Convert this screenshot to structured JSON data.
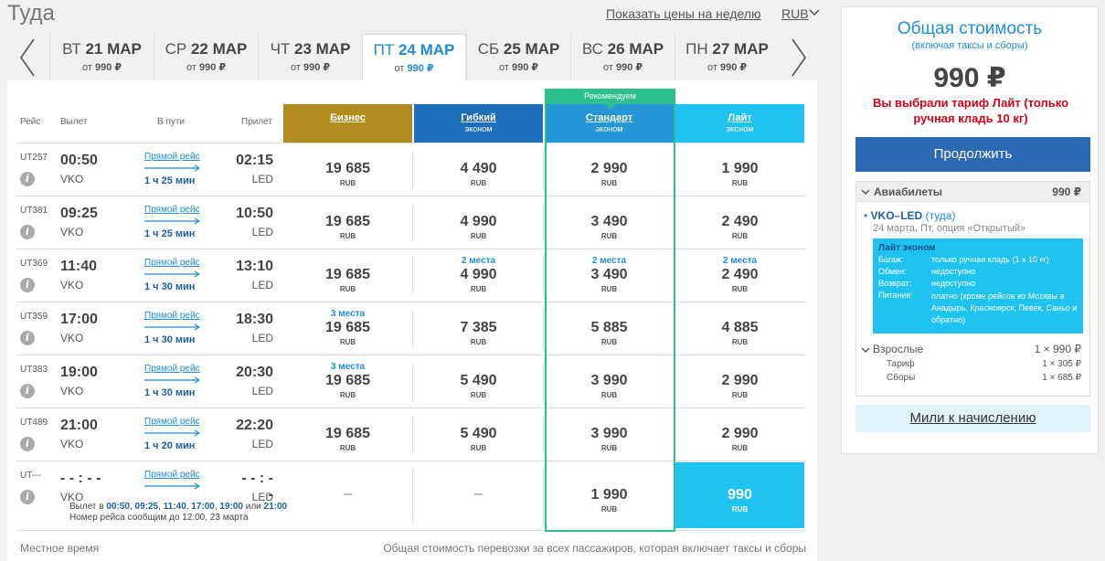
{
  "header": {
    "title": "Туда",
    "week_link": "Показать цены на неделю",
    "currency": "RUB"
  },
  "dates": [
    {
      "dow": "ВТ",
      "day": "21 МАР",
      "price_prefix": "от",
      "price": "990 ₽",
      "active": false
    },
    {
      "dow": "СР",
      "day": "22 МАР",
      "price_prefix": "от",
      "price": "990 ₽",
      "active": false
    },
    {
      "dow": "ЧТ",
      "day": "23 МАР",
      "price_prefix": "от",
      "price": "990 ₽",
      "active": false
    },
    {
      "dow": "ПТ",
      "day": "24 МАР",
      "price_prefix": "от",
      "price": "990 ₽",
      "active": true
    },
    {
      "dow": "СБ",
      "day": "25 МАР",
      "price_prefix": "от",
      "price": "990 ₽",
      "active": false
    },
    {
      "dow": "ВС",
      "day": "26 МАР",
      "price_prefix": "от",
      "price": "990 ₽",
      "active": false
    },
    {
      "dow": "ПН",
      "day": "27 МАР",
      "price_prefix": "от",
      "price": "990 ₽",
      "active": false
    }
  ],
  "table": {
    "columns": {
      "flight": "Рейс",
      "departure": "Вылет",
      "duration": "В пути",
      "arrival": "Прилет"
    },
    "recommended_label": "Рекомендуем",
    "fares": [
      {
        "name": "Бизнес",
        "sub": "",
        "color": "#b08c1e"
      },
      {
        "name": "Гибкий",
        "sub": "эконом",
        "color": "#1c6fb8"
      },
      {
        "name": "Стандарт",
        "sub": "эконом",
        "color": "#2596d8"
      },
      {
        "name": "Лайт",
        "sub": "эконом",
        "color": "#1ec3f0"
      }
    ],
    "rows": [
      {
        "flight": "UT257",
        "dep": "00:50",
        "dep_ap": "VKO",
        "direct": "Прямой рейс",
        "dur": "1 ч 25 мин",
        "arr": "02:15",
        "arr_ap": "LED",
        "cells": [
          {
            "seats": "",
            "price": "19 685",
            "cur": "RUB"
          },
          {
            "seats": "",
            "price": "4 490",
            "cur": "RUB"
          },
          {
            "seats": "",
            "price": "2 990",
            "cur": "RUB"
          },
          {
            "seats": "",
            "price": "1 990",
            "cur": "RUB"
          }
        ]
      },
      {
        "flight": "UT381",
        "dep": "09:25",
        "dep_ap": "VKO",
        "direct": "Прямой рейс",
        "dur": "1 ч 25 мин",
        "arr": "10:50",
        "arr_ap": "LED",
        "cells": [
          {
            "seats": "",
            "price": "19 685",
            "cur": "RUB"
          },
          {
            "seats": "",
            "price": "4 990",
            "cur": "RUB"
          },
          {
            "seats": "",
            "price": "3 490",
            "cur": "RUB"
          },
          {
            "seats": "",
            "price": "2 490",
            "cur": "RUB"
          }
        ]
      },
      {
        "flight": "UT369",
        "dep": "11:40",
        "dep_ap": "VKO",
        "direct": "Прямой рейс",
        "dur": "1 ч 30 мин",
        "arr": "13:10",
        "arr_ap": "LED",
        "cells": [
          {
            "seats": "",
            "price": "19 685",
            "cur": "RUB"
          },
          {
            "seats": "2 места",
            "price": "4 990",
            "cur": "RUB"
          },
          {
            "seats": "2 места",
            "price": "3 490",
            "cur": "RUB"
          },
          {
            "seats": "2 места",
            "price": "2 490",
            "cur": "RUB"
          }
        ]
      },
      {
        "flight": "UT359",
        "dep": "17:00",
        "dep_ap": "VKO",
        "direct": "Прямой рейс",
        "dur": "1 ч 30 мин",
        "arr": "18:30",
        "arr_ap": "LED",
        "cells": [
          {
            "seats": "3 места",
            "price": "19 685",
            "cur": "RUB"
          },
          {
            "seats": "",
            "price": "7 385",
            "cur": "RUB"
          },
          {
            "seats": "",
            "price": "5 885",
            "cur": "RUB"
          },
          {
            "seats": "",
            "price": "4 885",
            "cur": "RUB"
          }
        ]
      },
      {
        "flight": "UT383",
        "dep": "19:00",
        "dep_ap": "VKO",
        "direct": "Прямой рейс",
        "dur": "1 ч 30 мин",
        "arr": "20:30",
        "arr_ap": "LED",
        "cells": [
          {
            "seats": "3 места",
            "price": "19 685",
            "cur": "RUB"
          },
          {
            "seats": "",
            "price": "5 490",
            "cur": "RUB"
          },
          {
            "seats": "",
            "price": "3 990",
            "cur": "RUB"
          },
          {
            "seats": "",
            "price": "2 990",
            "cur": "RUB"
          }
        ]
      },
      {
        "flight": "UT489",
        "dep": "21:00",
        "dep_ap": "VKO",
        "direct": "Прямой рейс",
        "dur": "1 ч 20 мин",
        "arr": "22:20",
        "arr_ap": "LED",
        "cells": [
          {
            "seats": "",
            "price": "19 685",
            "cur": "RUB"
          },
          {
            "seats": "",
            "price": "5 490",
            "cur": "RUB"
          },
          {
            "seats": "",
            "price": "3 990",
            "cur": "RUB"
          },
          {
            "seats": "",
            "price": "2 990",
            "cur": "RUB"
          }
        ]
      }
    ],
    "unknown_row": {
      "flight": "UT---",
      "dep": "- - : - -",
      "dep_ap": "VKO",
      "direct": "Прямой рейс",
      "arr": "- - : - -",
      "arr_ap": "LED",
      "times_prefix": "Вылет в",
      "times": [
        "00:50",
        "09:25",
        "11:40",
        "17:00",
        "19:00"
      ],
      "times_or": "или",
      "times_last": "21:00",
      "note": "Номер рейса сообщим до 12:00, 23 марта",
      "cells": [
        {
          "dash": "–"
        },
        {
          "dash": "–"
        },
        {
          "price": "1 990",
          "cur": "RUB"
        },
        {
          "price": "990",
          "cur": "RUB"
        }
      ]
    },
    "footer_left": "Местное время",
    "footer_right": "Общая стоимость перевозки за всех пассажиров, которая включает таксы и сборы"
  },
  "summary": {
    "title": "Общая стоимость",
    "subtitle": "(включая таксы и сборы)",
    "price": "990 ₽",
    "tariff_message": "Вы выбрали тариф Лайт (только ручная кладь 10 кг)",
    "continue_label": "Продолжить",
    "tickets_label": "Авиабилеты",
    "tickets_amount": "990 ₽",
    "route": "VKO–LED",
    "route_dir": "(туда)",
    "route_date": "24 марта, Пт, опция «Открытый»",
    "fare_box": {
      "title": "Лайт эконом",
      "rows": [
        {
          "k": "Багаж:",
          "v": "только ручная кладь (1 х 10 кг)"
        },
        {
          "k": "Обмен:",
          "v": "недоступно"
        },
        {
          "k": "Возврат:",
          "v": "недоступно"
        },
        {
          "k": "Питание:",
          "v": "платно (кроме рейсов из Москвы в Анадырь, Красноярск, Певек, Саньо и обратно)"
        }
      ]
    },
    "adults_label": "Взрослые",
    "adults_amount": "1 × 990 ₽",
    "tariff_label": "Тариф",
    "tariff_amount": "1 × 305 ₽",
    "fees_label": "Сборы",
    "fees_amount": "1 × 685 ₽",
    "miles_label": "Мили к начислению"
  }
}
